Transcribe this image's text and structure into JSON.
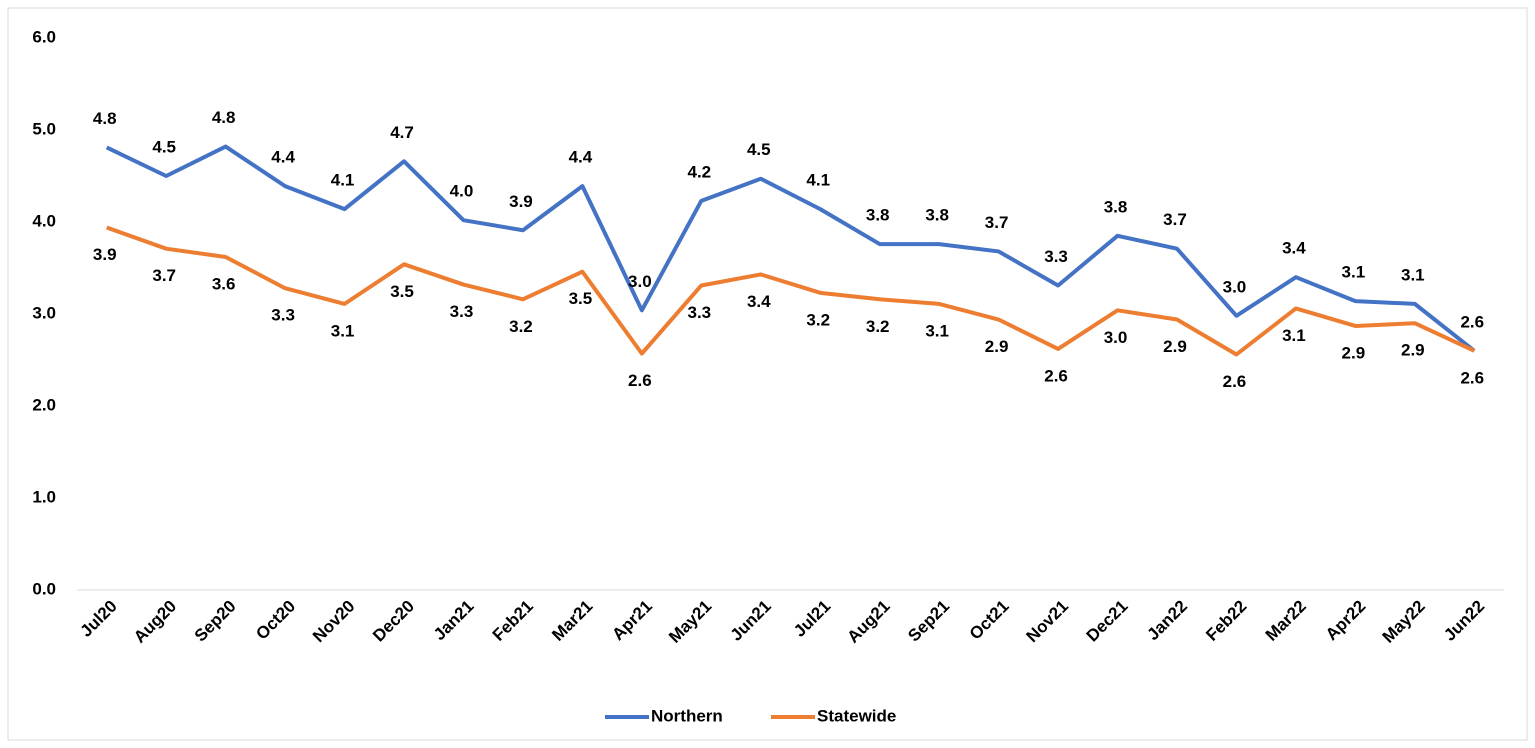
{
  "chart_data": {
    "type": "line",
    "categories": [
      "Jul20",
      "Aug20",
      "Sep20",
      "Oct20",
      "Nov20",
      "Dec20",
      "Jan21",
      "Feb21",
      "Mar21",
      "Apr21",
      "May21",
      "Jun21",
      "Jul21",
      "Aug21",
      "Sep21",
      "Oct21",
      "Nov21",
      "Dec21",
      "Jan22",
      "Feb22",
      "Mar22",
      "Apr22",
      "May22",
      "Jun22"
    ],
    "series": [
      {
        "name": "Northern",
        "color": "#4472c4",
        "values": [
          4.81,
          4.5,
          4.82,
          4.39,
          4.14,
          4.66,
          4.02,
          3.91,
          4.39,
          3.04,
          4.23,
          4.47,
          4.14,
          3.76,
          3.76,
          3.68,
          3.31,
          3.85,
          3.71,
          2.98,
          3.4,
          3.14,
          3.11,
          2.6
        ],
        "value_labels": [
          "4.8",
          "4.5",
          "4.8",
          "4.4",
          "4.1",
          "4.7",
          "4.0",
          "3.9",
          "4.4",
          "3.0",
          "4.2",
          "4.5",
          "4.1",
          "3.8",
          "3.8",
          "3.7",
          "3.3",
          "3.8",
          "3.7",
          "3.0",
          "3.4",
          "3.1",
          "3.1",
          "2.6"
        ]
      },
      {
        "name": "Statewide",
        "color": "#ed7d31",
        "values": [
          3.94,
          3.71,
          3.62,
          3.28,
          3.11,
          3.54,
          3.32,
          3.16,
          3.46,
          2.57,
          3.31,
          3.43,
          3.23,
          3.16,
          3.11,
          2.94,
          2.62,
          3.04,
          2.94,
          2.56,
          3.06,
          2.87,
          2.9,
          2.6
        ],
        "value_labels": [
          "3.9",
          "3.7",
          "3.6",
          "3.3",
          "3.1",
          "3.5",
          "3.3",
          "3.2",
          "3.5",
          "2.6",
          "3.3",
          "3.4",
          "3.2",
          "3.2",
          "3.1",
          "2.9",
          "2.6",
          "3.0",
          "2.9",
          "2.6",
          "3.1",
          "2.9",
          "2.9",
          "2.6"
        ]
      }
    ],
    "ylim": [
      0,
      6
    ],
    "yticks": [
      {
        "value": 0,
        "label": "0.0"
      },
      {
        "value": 1,
        "label": "1.0"
      },
      {
        "value": 2,
        "label": "2.0"
      },
      {
        "value": 3,
        "label": "3.0"
      },
      {
        "value": 4,
        "label": "4.0"
      },
      {
        "value": 5,
        "label": "5.0"
      },
      {
        "value": 6,
        "label": "6.0"
      }
    ],
    "grid": false
  }
}
